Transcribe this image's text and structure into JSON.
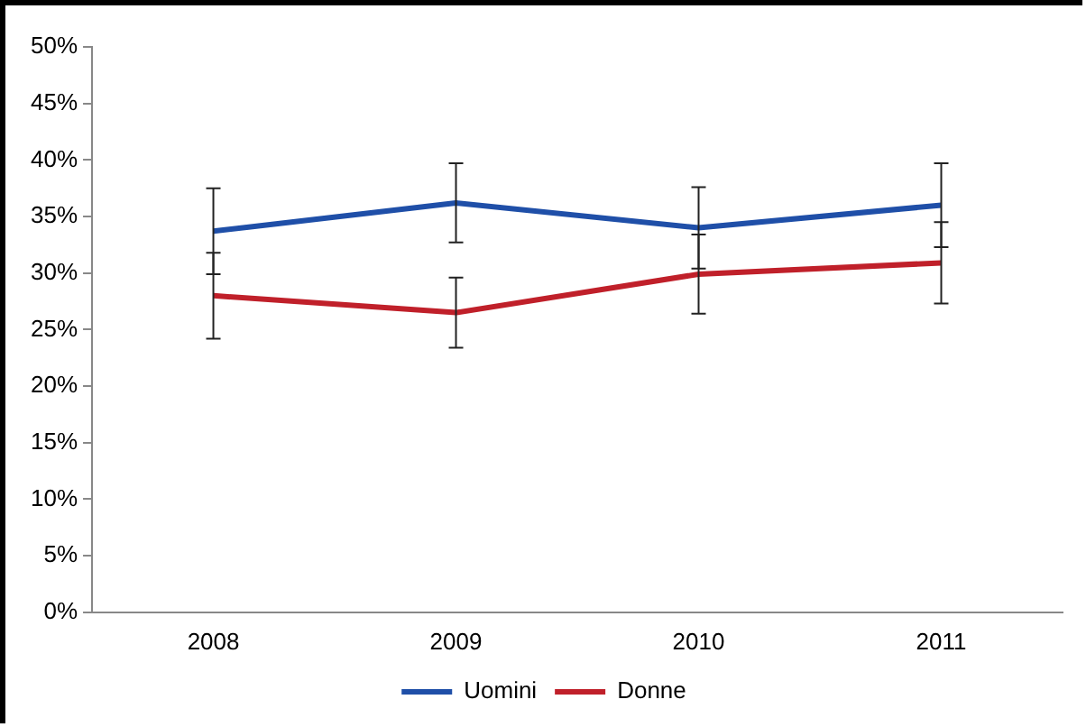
{
  "chart_data": {
    "type": "line",
    "categories": [
      "2008",
      "2009",
      "2010",
      "2011"
    ],
    "series": [
      {
        "name": "Uomini",
        "color": "#1f4fa8",
        "values": [
          33.7,
          36.2,
          34.0,
          36.0
        ],
        "errors": [
          3.8,
          3.5,
          3.6,
          3.7
        ]
      },
      {
        "name": "Donne",
        "color": "#c0202a",
        "values": [
          28.0,
          26.5,
          29.9,
          30.9
        ],
        "errors": [
          3.8,
          3.1,
          3.5,
          3.6
        ]
      }
    ],
    "ylim": [
      0,
      50
    ],
    "yticks": [
      {
        "value": 0,
        "label": "0%"
      },
      {
        "value": 5,
        "label": "5%"
      },
      {
        "value": 10,
        "label": "10%"
      },
      {
        "value": 15,
        "label": "15%"
      },
      {
        "value": 20,
        "label": "20%"
      },
      {
        "value": 25,
        "label": "25%"
      },
      {
        "value": 30,
        "label": "30%"
      },
      {
        "value": 35,
        "label": "35%"
      },
      {
        "value": 40,
        "label": "40%"
      },
      {
        "value": 45,
        "label": "45%"
      },
      {
        "value": 50,
        "label": "50%"
      }
    ],
    "grid": false,
    "legend": "bottom",
    "marker": "none",
    "line_style": "solid"
  }
}
